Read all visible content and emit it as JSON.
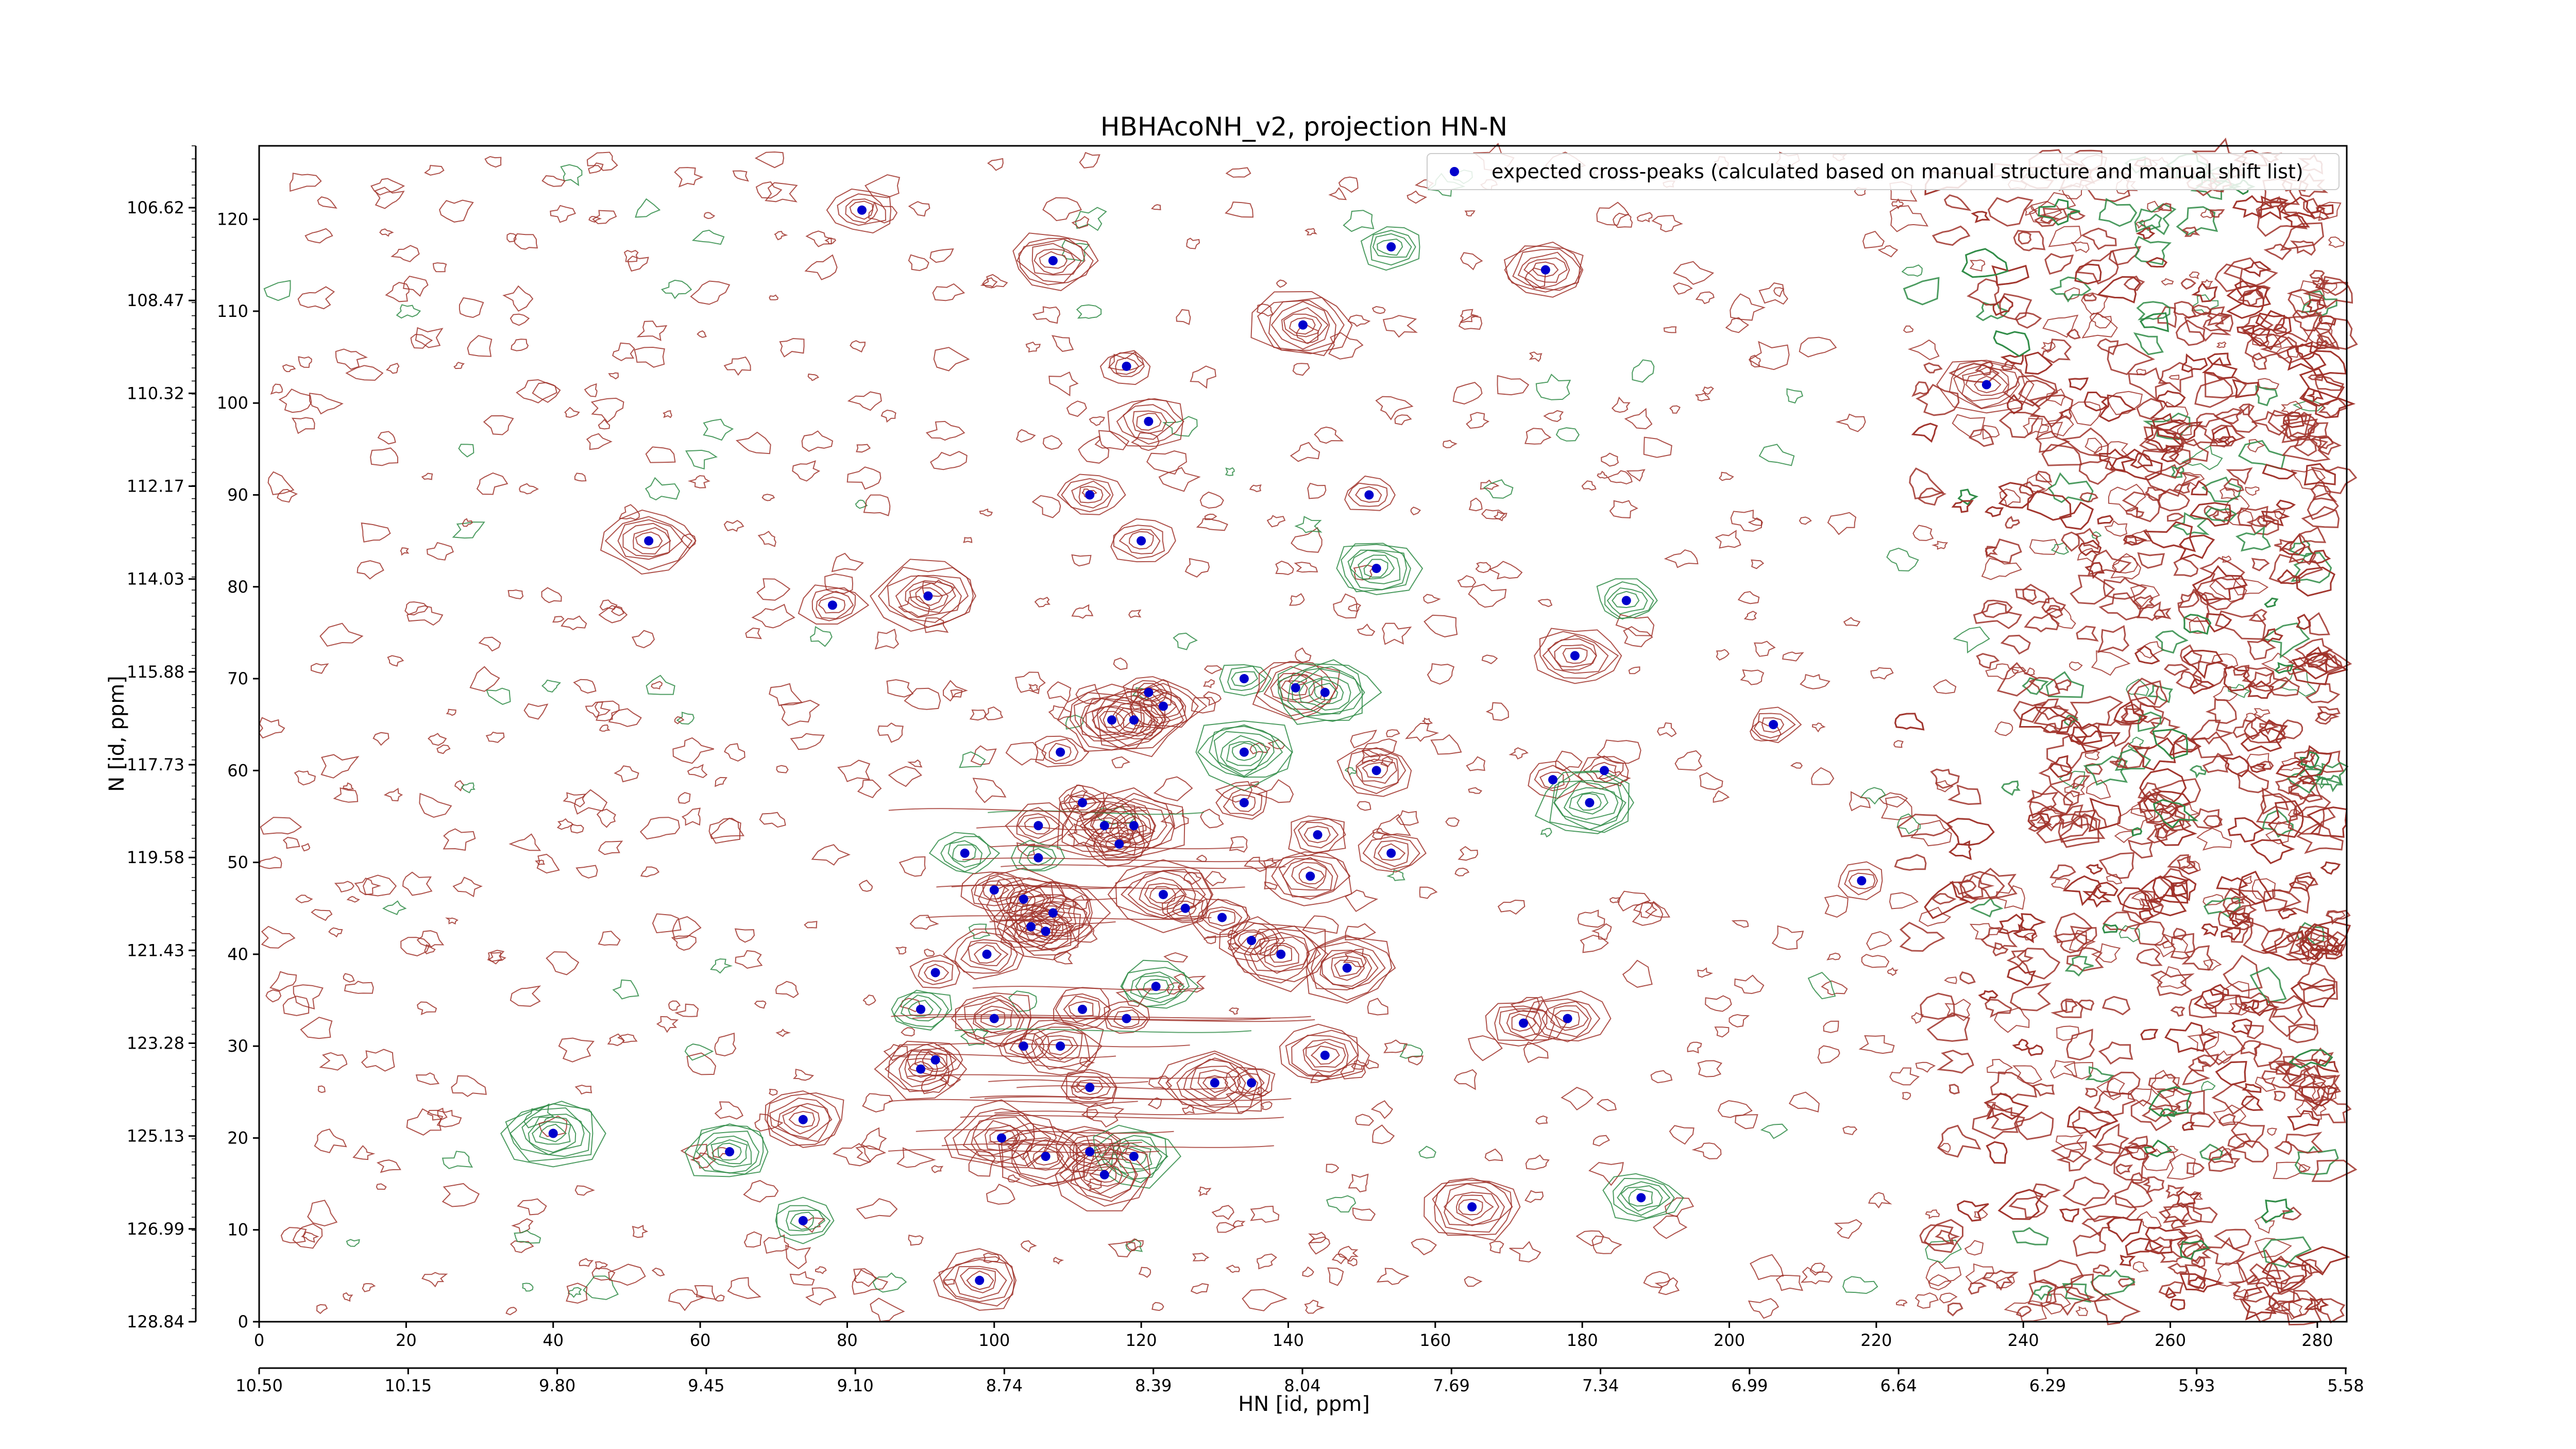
{
  "chart_data": {
    "type": "scatter",
    "title": "HBHAcoNH_v2, projection HN-N",
    "xlabel": "HN [id, ppm]",
    "ylabel": "N [id, ppm]",
    "xlim": [
      0,
      284
    ],
    "ylim": [
      0,
      128
    ],
    "grid": false,
    "legend_position": "top-right",
    "x_index_ticks": [
      "0",
      "20",
      "40",
      "60",
      "80",
      "100",
      "120",
      "140",
      "160",
      "180",
      "200",
      "220",
      "240",
      "260",
      "280"
    ],
    "x_ppm_ticks": [
      "10.50",
      "10.15",
      "9.80",
      "9.45",
      "9.10",
      "8.74",
      "8.39",
      "8.04",
      "7.69",
      "7.34",
      "6.99",
      "6.64",
      "6.29",
      "5.93",
      "5.58"
    ],
    "y_index_ticks": [
      "0",
      "10",
      "20",
      "30",
      "40",
      "50",
      "60",
      "70",
      "80",
      "90",
      "100",
      "110",
      "120"
    ],
    "y_ppm_ticks": [
      "128.84",
      "126.99",
      "125.13",
      "123.28",
      "121.43",
      "119.58",
      "117.73",
      "115.88",
      "114.03",
      "112.17",
      "110.32",
      "108.47",
      "106.62"
    ],
    "colors": {
      "positive_contour": "#a0322a",
      "negative_contour": "#2e8b45",
      "marker": "#0000cc"
    },
    "series": [
      {
        "name": "expected cross-peaks (calculated based on manual structure and manual shift list)",
        "points": [
          [
            82,
            121
          ],
          [
            108,
            115.5
          ],
          [
            154,
            117
          ],
          [
            175,
            114.5
          ],
          [
            142,
            108.5
          ],
          [
            118,
            104
          ],
          [
            121,
            98
          ],
          [
            235,
            102
          ],
          [
            113,
            90
          ],
          [
            151,
            90
          ],
          [
            120,
            85
          ],
          [
            152,
            82
          ],
          [
            53,
            85
          ],
          [
            78,
            78
          ],
          [
            91,
            79
          ],
          [
            186,
            78.5
          ],
          [
            179,
            72.5
          ],
          [
            134,
            70
          ],
          [
            141,
            69
          ],
          [
            145,
            68.5
          ],
          [
            121,
            68.5
          ],
          [
            123,
            67
          ],
          [
            116,
            65.5
          ],
          [
            119,
            65.5
          ],
          [
            206,
            65
          ],
          [
            109,
            62
          ],
          [
            134,
            62
          ],
          [
            152,
            60
          ],
          [
            183,
            60
          ],
          [
            176,
            59
          ],
          [
            181,
            56.5
          ],
          [
            134,
            56.5
          ],
          [
            112,
            56.5
          ],
          [
            106,
            54
          ],
          [
            115,
            54
          ],
          [
            119,
            54
          ],
          [
            144,
            53
          ],
          [
            96,
            51
          ],
          [
            117,
            52
          ],
          [
            154,
            51
          ],
          [
            106,
            50.5
          ],
          [
            143,
            48.5
          ],
          [
            218,
            48
          ],
          [
            100,
            47
          ],
          [
            104,
            46
          ],
          [
            123,
            46.5
          ],
          [
            126,
            45
          ],
          [
            108,
            44.5
          ],
          [
            131,
            44
          ],
          [
            105,
            43
          ],
          [
            107,
            42.5
          ],
          [
            135,
            41.5
          ],
          [
            99,
            40
          ],
          [
            139,
            40
          ],
          [
            92,
            38
          ],
          [
            148,
            38.5
          ],
          [
            122,
            36.5
          ],
          [
            112,
            34
          ],
          [
            90,
            34
          ],
          [
            100,
            33
          ],
          [
            118,
            33
          ],
          [
            178,
            33
          ],
          [
            172,
            32.5
          ],
          [
            104,
            30
          ],
          [
            109,
            30
          ],
          [
            145,
            29
          ],
          [
            92,
            28.5
          ],
          [
            90,
            27.5
          ],
          [
            113,
            25.5
          ],
          [
            130,
            26
          ],
          [
            135,
            26
          ],
          [
            74,
            22
          ],
          [
            40,
            20.5
          ],
          [
            101,
            20
          ],
          [
            64,
            18.5
          ],
          [
            107,
            18
          ],
          [
            113,
            18.5
          ],
          [
            119,
            18
          ],
          [
            115,
            16
          ],
          [
            165,
            12.5
          ],
          [
            188,
            13.5
          ],
          [
            74,
            11
          ],
          [
            98,
            4.5
          ]
        ]
      }
    ]
  }
}
